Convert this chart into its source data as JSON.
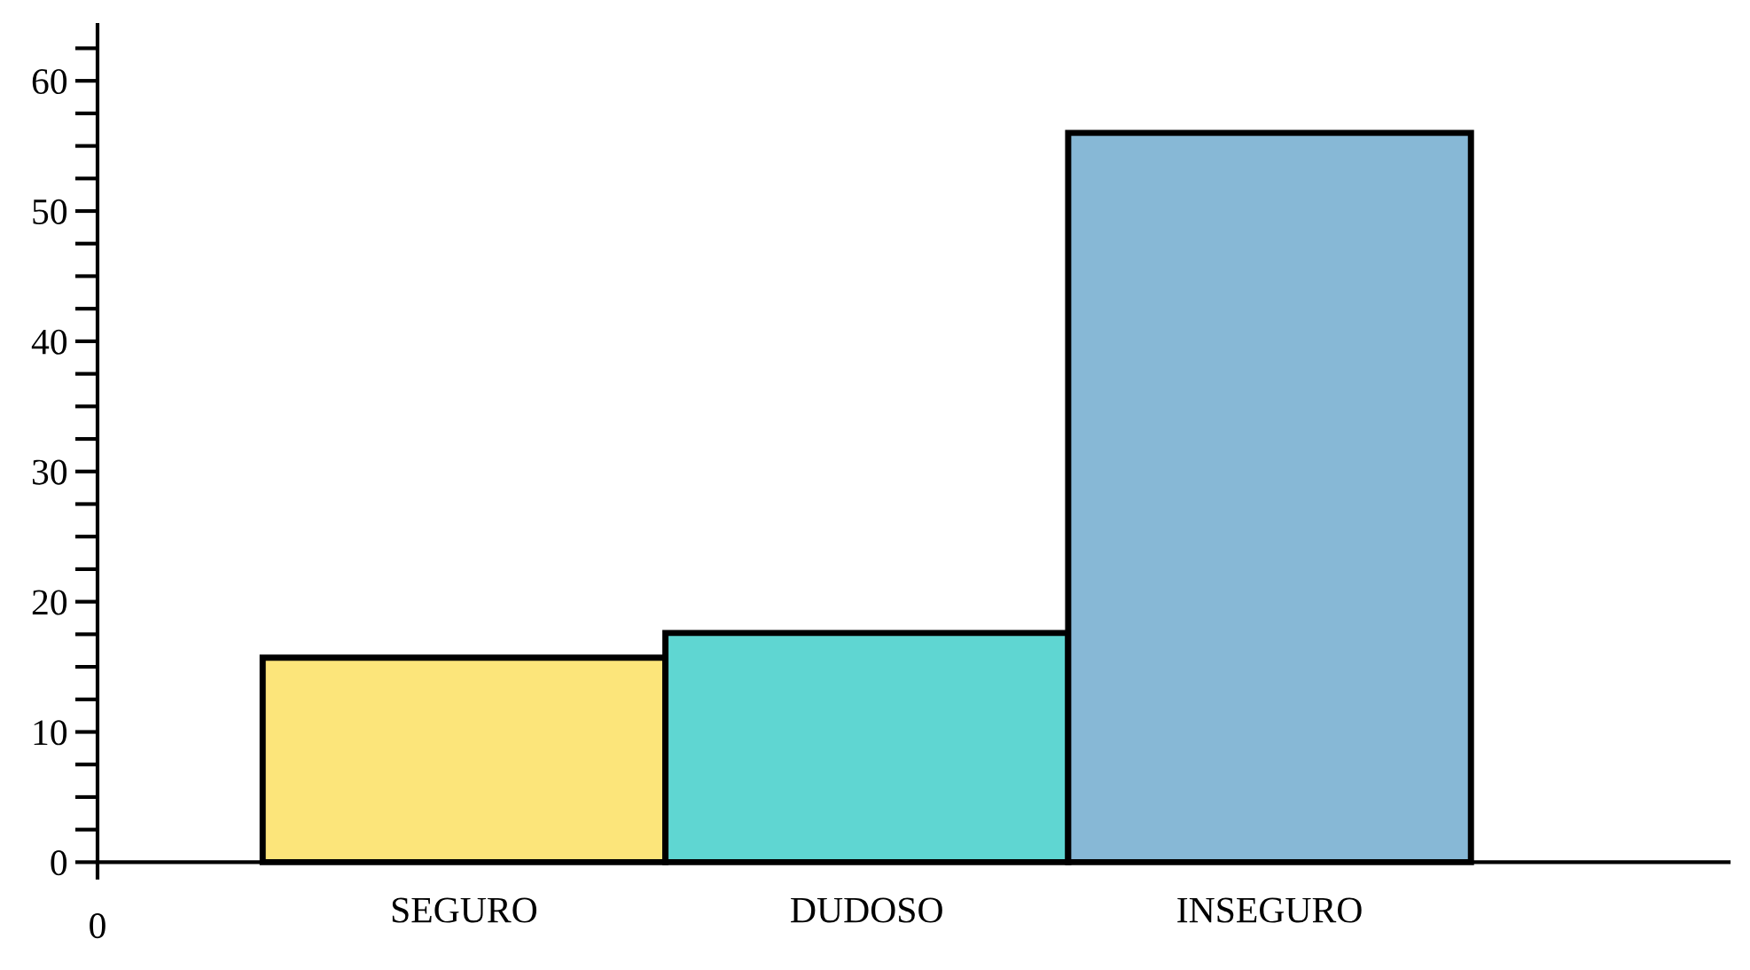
{
  "chart_data": {
    "type": "bar",
    "categories": [
      "SEGURO",
      "DUDOSO",
      "INSEGURO"
    ],
    "values": [
      15.7,
      17.6,
      56
    ],
    "colors": [
      "#fce57a",
      "#5fd6d2",
      "#87b8d6"
    ],
    "ylim": [
      -1.2,
      64.3
    ],
    "yticks": [
      0,
      {
        "value": 2.5,
        "label": null
      },
      {
        "value": 5,
        "label": null
      },
      {
        "value": 7.5,
        "label": null
      },
      10,
      {
        "value": 12.5,
        "label": null
      },
      {
        "value": 15,
        "label": null
      },
      {
        "value": 17.5,
        "label": null
      },
      20,
      {
        "value": 22.5,
        "label": null
      },
      {
        "value": 25,
        "label": null
      },
      {
        "value": 27.5,
        "label": null
      },
      30,
      {
        "value": 32.5,
        "label": null
      },
      {
        "value": 35,
        "label": null
      },
      {
        "value": 37.5,
        "label": null
      },
      40,
      {
        "value": 42.5,
        "label": null
      },
      {
        "value": 45,
        "label": null
      },
      {
        "value": 47.5,
        "label": null
      },
      50,
      {
        "value": 52.5,
        "label": null
      },
      {
        "value": 55,
        "label": null
      },
      {
        "value": 57.5,
        "label": null
      },
      60,
      {
        "value": 62.5,
        "label": null
      }
    ],
    "annotations": [
      "0"
    ],
    "grid": false,
    "legend": false
  }
}
